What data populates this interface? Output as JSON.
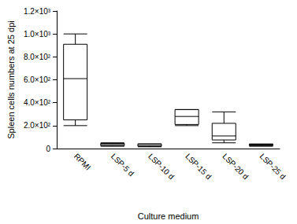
{
  "chart_data": {
    "type": "boxplot",
    "y_label": "Spleen cells numbers at 25 dpi",
    "x_label": "Culture medium",
    "categories": [
      "RPMI",
      "LSP-5 d",
      "LSP-10 d",
      "LSP-15 d",
      "LSP-20 d",
      "LSP-25 d"
    ],
    "values": [
      [
        200,
        250,
        610,
        910,
        1000
      ],
      [
        20,
        25,
        35,
        45,
        50
      ],
      [
        15,
        20,
        25,
        40,
        40
      ],
      [
        200,
        210,
        280,
        340,
        340
      ],
      [
        50,
        75,
        110,
        220,
        320
      ],
      [
        20,
        25,
        30,
        38,
        40
      ]
    ],
    "color": "#000000",
    "ylim": [
      0,
      1200
    ],
    "yticks": [
      0,
      {
        "value": 200,
        "label": "2.0×10²"
      },
      {
        "value": 400,
        "label": "4.0×10²"
      },
      {
        "value": 600,
        "label": "6.0×10²"
      },
      {
        "value": 800,
        "label": "8.0×10²"
      },
      {
        "value": 1000,
        "label": "1.0×10³"
      },
      {
        "value": 1200,
        "label": "1.2×10³"
      }
    ],
    "grid": false
  }
}
